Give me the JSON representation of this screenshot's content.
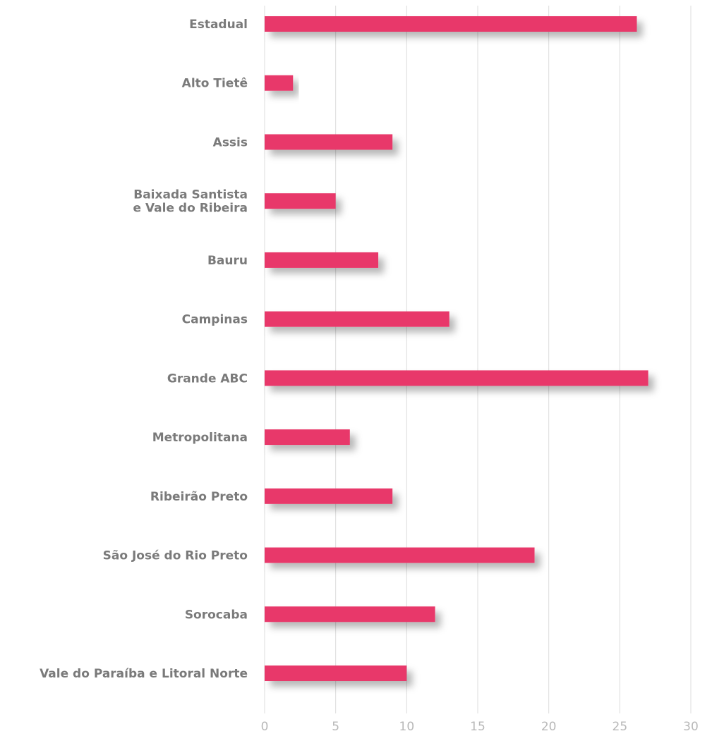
{
  "chart_data": {
    "type": "bar",
    "orientation": "horizontal",
    "categories": [
      [
        "Estadual"
      ],
      [
        "Alto Tietê"
      ],
      [
        "Assis"
      ],
      [
        "Baixada Santista",
        "e Vale do Ribeira"
      ],
      [
        "Bauru"
      ],
      [
        "Campinas"
      ],
      [
        "Grande ABC"
      ],
      [
        "Metropolitana"
      ],
      [
        "Ribeirão Preto"
      ],
      [
        "São José do Rio Preto"
      ],
      [
        "Sorocaba"
      ],
      [
        "Vale do Paraíba e Litoral Norte"
      ]
    ],
    "values": [
      26.2,
      2,
      9,
      5,
      8,
      13,
      27,
      6,
      9,
      19,
      12,
      10
    ],
    "xlim": [
      0,
      30
    ],
    "xticks": [
      "0",
      "5",
      "10",
      "15",
      "20",
      "25",
      "30"
    ],
    "grid": true,
    "bar_color": "#e8396a"
  }
}
